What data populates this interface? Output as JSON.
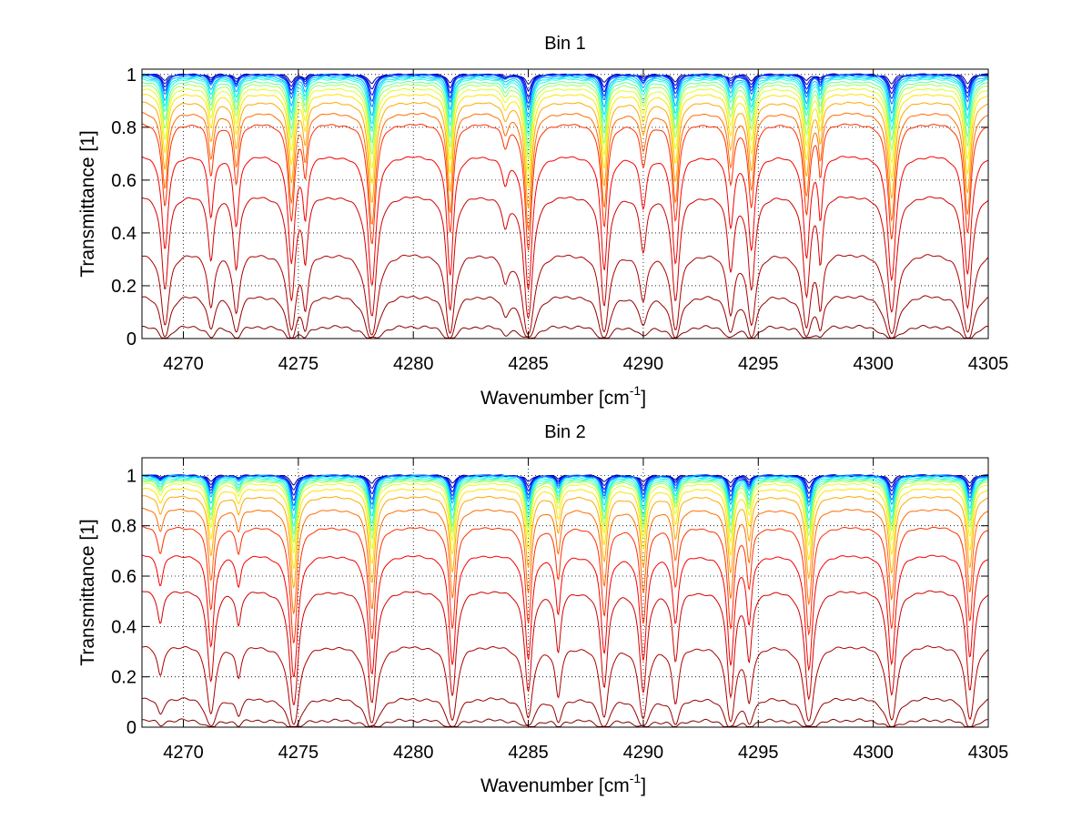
{
  "figure": {
    "background": "#ffffff"
  },
  "chart_data": [
    {
      "type": "line",
      "title": "Bin 1",
      "xlabel": "Wavenumber [cm",
      "xlabel_sup": "-1",
      "xlabel_end": "]",
      "ylabel": "Transmittance [1]",
      "xlim": [
        4268.2,
        4305
      ],
      "ylim": [
        0,
        1.02
      ],
      "grid": true,
      "xticks": [
        4270,
        4275,
        4280,
        4285,
        4290,
        4295,
        4300,
        4305
      ],
      "yticks": [
        0,
        0.2,
        0.4,
        0.6,
        0.8,
        1
      ],
      "ytick_labels": [
        "0",
        "0.2",
        "0.4",
        "0.6",
        "0.8",
        "1"
      ],
      "series_count": 20,
      "colormap": [
        "#00008f",
        "#0000ff",
        "#0080ff",
        "#00ffff",
        "#80ff80",
        "#ffff00",
        "#ff8000",
        "#ff0000",
        "#b00000",
        "#800000"
      ],
      "baselines": [
        1.0,
        1.0,
        1.0,
        1.0,
        1.0,
        0.995,
        0.99,
        0.985,
        0.975,
        0.965,
        0.95,
        0.93,
        0.9,
        0.86,
        0.82,
        0.7,
        0.55,
        0.33,
        0.17,
        0.05
      ],
      "lines": [
        {
          "center": 4269.2,
          "depth": 0.45,
          "width": 0.14
        },
        {
          "center": 4271.2,
          "depth": 0.25,
          "width": 0.13
        },
        {
          "center": 4272.3,
          "depth": 0.3,
          "width": 0.13
        },
        {
          "center": 4274.7,
          "depth": 0.55,
          "width": 0.14
        },
        {
          "center": 4275.3,
          "depth": 0.25,
          "width": 0.11
        },
        {
          "center": 4278.2,
          "depth": 0.75,
          "width": 0.16
        },
        {
          "center": 4281.6,
          "depth": 0.65,
          "width": 0.13
        },
        {
          "center": 4284.0,
          "depth": 0.1,
          "width": 0.15
        },
        {
          "center": 4285.0,
          "depth": 0.8,
          "width": 0.15
        },
        {
          "center": 4288.3,
          "depth": 0.6,
          "width": 0.14
        },
        {
          "center": 4290.0,
          "depth": 0.2,
          "width": 0.15
        },
        {
          "center": 4291.4,
          "depth": 0.55,
          "width": 0.14
        },
        {
          "center": 4293.8,
          "depth": 0.3,
          "width": 0.14
        },
        {
          "center": 4294.7,
          "depth": 0.45,
          "width": 0.14
        },
        {
          "center": 4297.1,
          "depth": 0.5,
          "width": 0.14
        },
        {
          "center": 4297.7,
          "depth": 0.25,
          "width": 0.1
        },
        {
          "center": 4300.8,
          "depth": 0.7,
          "width": 0.16
        },
        {
          "center": 4304.1,
          "depth": 0.65,
          "width": 0.15
        }
      ]
    },
    {
      "type": "line",
      "title": "Bin 2",
      "xlabel": "Wavenumber [cm",
      "xlabel_sup": "-1",
      "xlabel_end": "]",
      "ylabel": "Transmittance [1]",
      "xlim": [
        4268.2,
        4305
      ],
      "ylim": [
        0,
        1.07
      ],
      "grid": true,
      "xticks": [
        4270,
        4275,
        4280,
        4285,
        4290,
        4295,
        4300,
        4305
      ],
      "yticks": [
        0,
        0.2,
        0.4,
        0.6,
        0.8,
        1
      ],
      "ytick_labels": [
        "0",
        "0.2",
        "0.4",
        "0.6",
        "0.8",
        "1"
      ],
      "series_count": 20,
      "colormap": [
        "#00008f",
        "#0000ff",
        "#0080ff",
        "#00ffff",
        "#80ff80",
        "#ffff00",
        "#ff8000",
        "#ff0000",
        "#b00000",
        "#800000"
      ],
      "baselines": [
        1.0,
        1.0,
        1.0,
        1.0,
        1.0,
        1.0,
        0.995,
        0.99,
        0.985,
        0.98,
        0.97,
        0.95,
        0.92,
        0.87,
        0.8,
        0.69,
        0.55,
        0.33,
        0.12,
        0.03
      ],
      "lines": [
        {
          "center": 4269.0,
          "depth": 0.12,
          "width": 0.14
        },
        {
          "center": 4271.2,
          "depth": 0.45,
          "width": 0.14
        },
        {
          "center": 4272.4,
          "depth": 0.12,
          "width": 0.12
        },
        {
          "center": 4274.8,
          "depth": 0.75,
          "width": 0.15
        },
        {
          "center": 4278.2,
          "depth": 0.7,
          "width": 0.15
        },
        {
          "center": 4281.7,
          "depth": 0.6,
          "width": 0.14
        },
        {
          "center": 4285.0,
          "depth": 0.55,
          "width": 0.14
        },
        {
          "center": 4286.3,
          "depth": 0.25,
          "width": 0.12
        },
        {
          "center": 4288.3,
          "depth": 0.5,
          "width": 0.14
        },
        {
          "center": 4290.0,
          "depth": 0.55,
          "width": 0.14
        },
        {
          "center": 4291.4,
          "depth": 0.3,
          "width": 0.13
        },
        {
          "center": 4293.8,
          "depth": 0.6,
          "width": 0.14
        },
        {
          "center": 4294.6,
          "depth": 0.3,
          "width": 0.12
        },
        {
          "center": 4297.2,
          "depth": 0.65,
          "width": 0.15
        },
        {
          "center": 4300.8,
          "depth": 0.6,
          "width": 0.15
        },
        {
          "center": 4304.2,
          "depth": 0.55,
          "width": 0.14
        }
      ]
    }
  ]
}
